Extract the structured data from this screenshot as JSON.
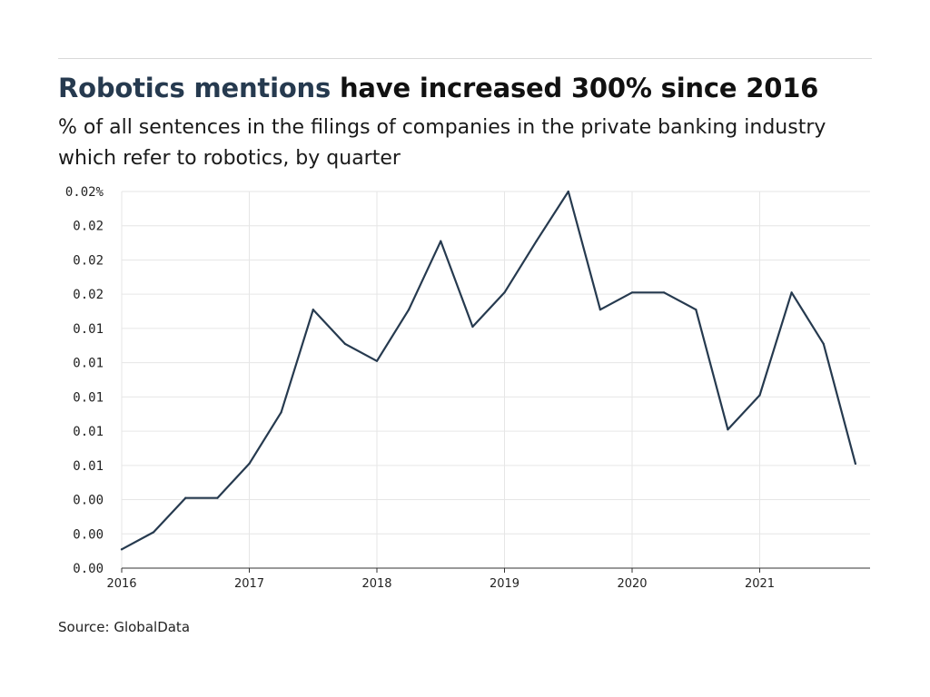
{
  "header": {
    "title_highlight": "Robotics mentions",
    "title_rest": " have increased 300% since 2016",
    "subtitle": "% of all sentences in the filings of companies in the private banking industry which refer to robotics, by quarter"
  },
  "footer": {
    "source": "Source: GlobalData"
  },
  "colors": {
    "line": "#263a4f",
    "highlight": "#263a4f",
    "grid": "#e6e6e6",
    "axis": "#333333"
  },
  "chart_data": {
    "type": "line",
    "title": "Robotics mentions have increased 300% since 2016",
    "subtitle": "% of all sentences in the filings of companies in the private banking industry which refer to robotics, by quarter",
    "xlabel": "",
    "ylabel": "",
    "grid": true,
    "legend": "none",
    "x_tick_labels": [
      "2016",
      "2017",
      "2018",
      "2019",
      "2020",
      "2021"
    ],
    "y_tick_labels": [
      "0.02%",
      "0.02",
      "0.02",
      "0.02",
      "0.01",
      "0.01",
      "0.01",
      "0.01",
      "0.01",
      "0.00",
      "0.00",
      "0.00"
    ],
    "ylim": [
      0,
      0.022
    ],
    "series": [
      {
        "x": [
          "2016 Q1",
          "2016 Q2",
          "2016 Q3",
          "2016 Q4",
          "2017 Q1",
          "2017 Q2",
          "2017 Q3",
          "2017 Q4",
          "2018 Q1",
          "2018 Q2",
          "2018 Q3",
          "2018 Q4",
          "2019 Q1",
          "2019 Q2",
          "2019 Q3",
          "2019 Q4",
          "2020 Q1",
          "2020 Q2",
          "2020 Q3",
          "2020 Q4",
          "2021 Q1",
          "2021 Q2",
          "2021 Q3",
          "2021 Q4"
        ],
        "values": [
          0.0011,
          0.0021,
          0.0041,
          0.0041,
          0.0061,
          0.0091,
          0.0151,
          0.0131,
          0.0121,
          0.0151,
          0.0191,
          0.0141,
          0.0161,
          0.0191,
          0.022,
          0.0151,
          0.0161,
          0.0161,
          0.0151,
          0.0081,
          0.0101,
          0.0161,
          0.0131,
          0.0061
        ]
      }
    ]
  }
}
